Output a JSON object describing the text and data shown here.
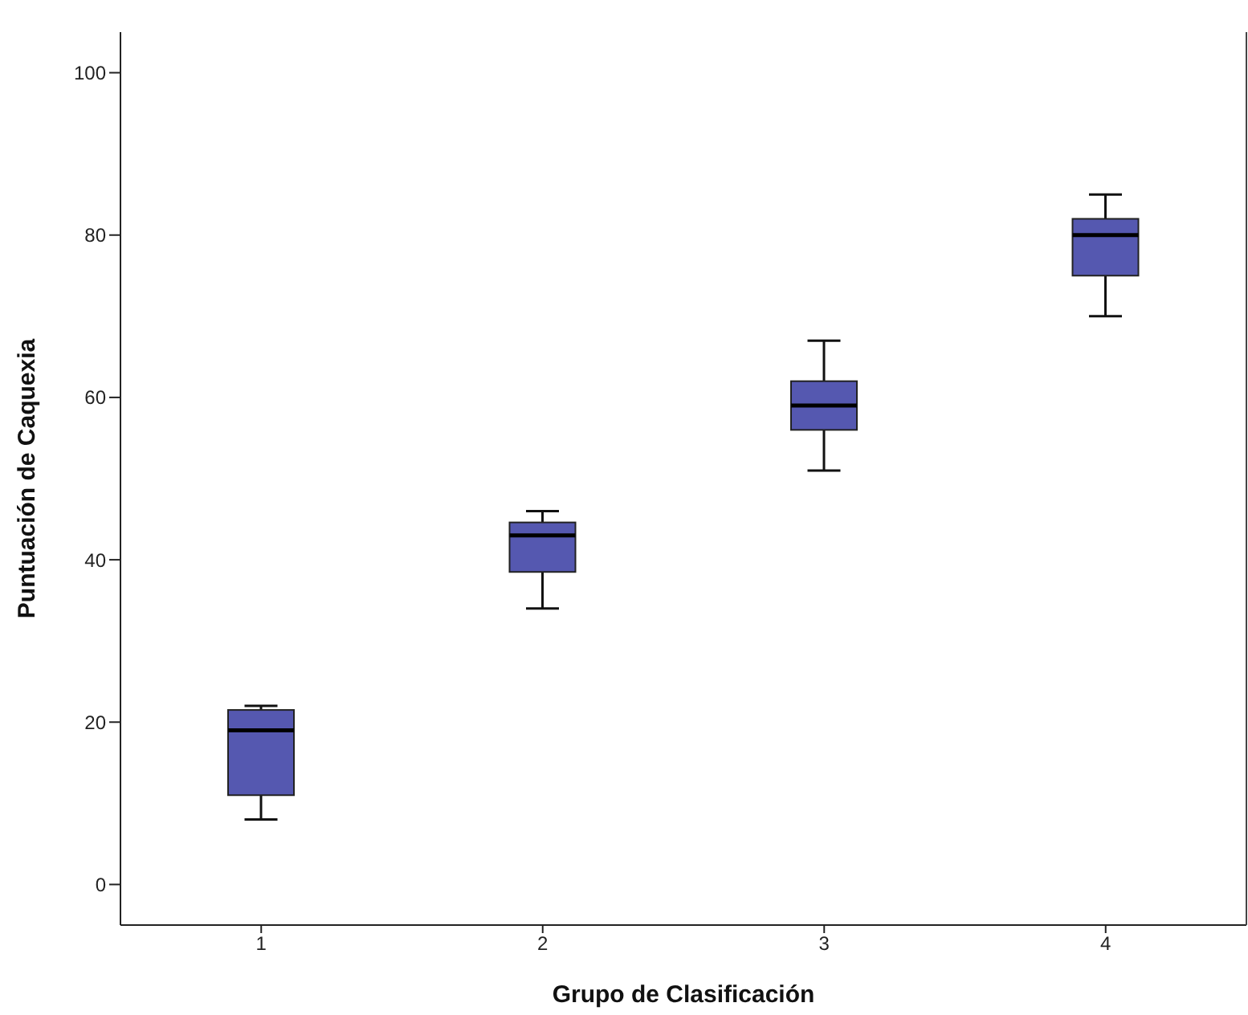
{
  "chart_data": {
    "type": "box",
    "xlabel": "Grupo de Clasificación",
    "ylabel": "Puntuación de Caquexia",
    "categories": [
      "1",
      "2",
      "3",
      "4"
    ],
    "color": "#5558b0",
    "boxes": [
      {
        "low": 8,
        "q1": 11,
        "median": 19,
        "q3": 21.5,
        "high": 22
      },
      {
        "low": 34,
        "q1": 38.5,
        "median": 43,
        "q3": 44.6,
        "high": 46
      },
      {
        "low": 51,
        "q1": 56,
        "median": 59,
        "q3": 62,
        "high": 67
      },
      {
        "low": 70,
        "q1": 75,
        "median": 80,
        "q3": 82,
        "high": 85
      }
    ],
    "ylim": [
      -5,
      105
    ],
    "yticks": [
      0,
      20,
      40,
      60,
      80,
      100
    ],
    "grid": false
  }
}
